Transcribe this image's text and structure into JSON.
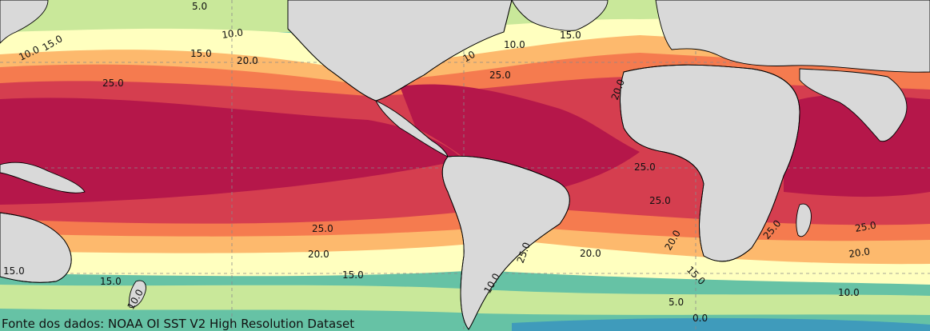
{
  "map": {
    "colors": {
      "sst_lt_0": "#2f6fb5",
      "sst_0": "#3f9bbb",
      "sst_5": "#66c2a5",
      "sst_10": "#c9e89a",
      "sst_15": "#ffffbf",
      "sst_20": "#fdb96d",
      "sst_22": "#f57b4f",
      "sst_25": "#d53e4f",
      "sst_28": "#b5174a",
      "land": "#d9d9d9",
      "coastline": "#000000",
      "contour_line": "#1a1a1a",
      "graticule": "#8a8a8a"
    },
    "contour_labels": [
      {
        "id": "label-5-nw",
        "text": "5.0"
      },
      {
        "id": "label-10-npac",
        "text": "10.0"
      },
      {
        "id": "label-10-japan",
        "text": "10.0"
      },
      {
        "id": "label-15-japan",
        "text": "15.0"
      },
      {
        "id": "label-15-npac",
        "text": "15.0"
      },
      {
        "id": "label-20-npac",
        "text": "20.0"
      },
      {
        "id": "label-25-npac",
        "text": "25.0"
      },
      {
        "id": "label-10-natl",
        "text": "10.0"
      },
      {
        "id": "label-10-natl-b",
        "text": "10"
      },
      {
        "id": "label-15-natl",
        "text": "15.0"
      },
      {
        "id": "label-25-natl",
        "text": "25.0"
      },
      {
        "id": "label-20-natl-e",
        "text": "20.0"
      },
      {
        "id": "label-25-satl",
        "text": "25.0"
      },
      {
        "id": "label-25-satl-b",
        "text": "25.0"
      },
      {
        "id": "label-25-spac",
        "text": "25.0"
      },
      {
        "id": "label-20-spac",
        "text": "20.0"
      },
      {
        "id": "label-15-spac",
        "text": "15.0"
      },
      {
        "id": "label-15-spac-w",
        "text": "15.0"
      },
      {
        "id": "label-15-aus",
        "text": "15.0"
      },
      {
        "id": "label-10-nz",
        "text": "10.0"
      },
      {
        "id": "label-25-arg",
        "text": "25.0"
      },
      {
        "id": "label-10-arg",
        "text": "10.0"
      },
      {
        "id": "label-20-satl",
        "text": "20.0"
      },
      {
        "id": "label-20-safr",
        "text": "20.0"
      },
      {
        "id": "label-15-safr",
        "text": "15.0"
      },
      {
        "id": "label-5-so",
        "text": "5.0"
      },
      {
        "id": "label-0-so",
        "text": "0.0"
      },
      {
        "id": "label-25-mad",
        "text": "25.0"
      },
      {
        "id": "label-25-sio",
        "text": "25.0"
      },
      {
        "id": "label-20-sio",
        "text": "20.0"
      },
      {
        "id": "label-10-sio",
        "text": "10.0"
      }
    ],
    "source_text": "Fonte dos dados: NOAA OI SST V2 High Resolution Dataset"
  }
}
